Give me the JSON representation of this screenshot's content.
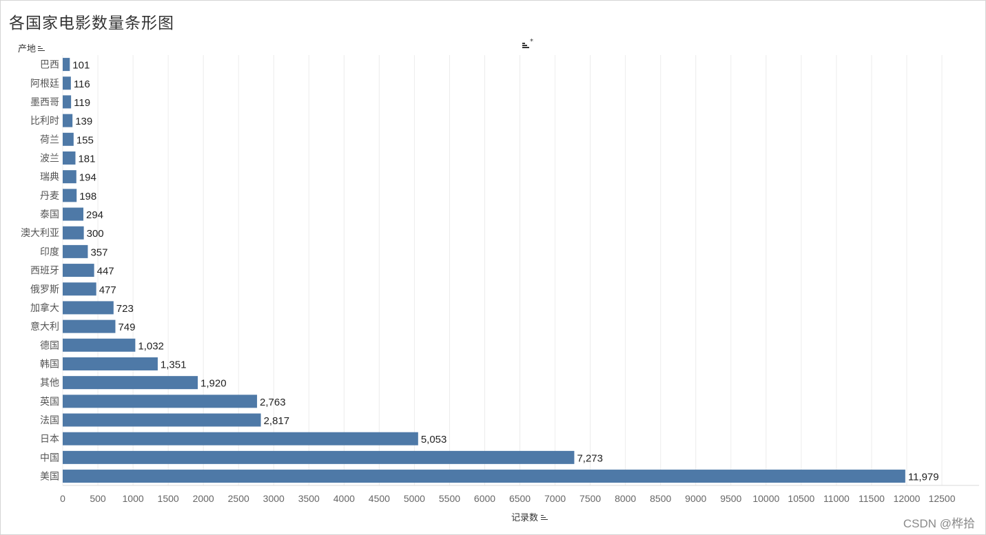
{
  "page": {
    "title": "各国家电影数量条形图",
    "row_header": "产地",
    "x_axis_title": "记录数",
    "watermark": "CSDN @桦拾"
  },
  "icons": {
    "row_sort": "sort-descending-icon",
    "top_sort": "sort-toggle-icon",
    "axis_sort": "sort-descending-icon"
  },
  "chart_data": {
    "type": "bar",
    "orientation": "horizontal",
    "title": "各国家电影数量条形图",
    "ylabel": "产地",
    "xlabel": "记录数",
    "xlim": [
      0,
      12500
    ],
    "xticks": [
      0,
      500,
      1000,
      1500,
      2000,
      2500,
      3000,
      3500,
      4000,
      4500,
      5000,
      5500,
      6000,
      6500,
      7000,
      7500,
      8000,
      8500,
      9000,
      9500,
      10000,
      10500,
      11000,
      11500,
      12000,
      12500
    ],
    "grid": true,
    "bar_color": "#4e79a7",
    "categories": [
      "巴西",
      "阿根廷",
      "墨西哥",
      "比利时",
      "荷兰",
      "波兰",
      "瑞典",
      "丹麦",
      "泰国",
      "澳大利亚",
      "印度",
      "西班牙",
      "俄罗斯",
      "加拿大",
      "意大利",
      "德国",
      "韩国",
      "其他",
      "英国",
      "法国",
      "日本",
      "中国",
      "美国"
    ],
    "values": [
      101,
      116,
      119,
      139,
      155,
      181,
      194,
      198,
      294,
      300,
      357,
      447,
      477,
      723,
      749,
      1032,
      1351,
      1920,
      2763,
      2817,
      5053,
      7273,
      11979
    ],
    "value_labels": [
      "101",
      "116",
      "119",
      "139",
      "155",
      "181",
      "194",
      "198",
      "294",
      "300",
      "357",
      "447",
      "477",
      "723",
      "749",
      "1,032",
      "1,351",
      "1,920",
      "2,763",
      "2,817",
      "5,053",
      "7,273",
      "11,979"
    ]
  }
}
